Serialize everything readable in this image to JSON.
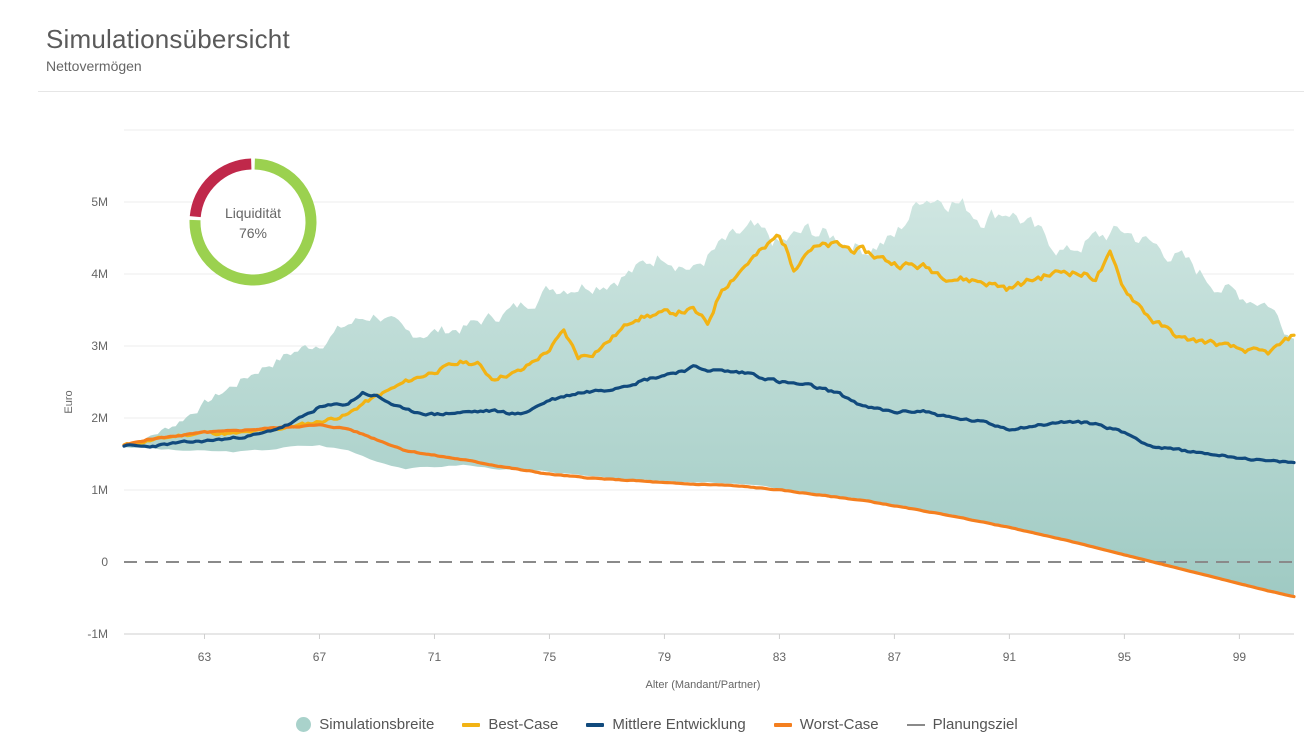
{
  "header": {
    "title": "Simulationsübersicht",
    "subtitle": "Nettovermögen"
  },
  "donut": {
    "label": "Liquidität",
    "value_text": "76%",
    "value": 0.76,
    "colors": {
      "good": "#9bd14f",
      "bad": "#c0284a"
    }
  },
  "chart_data": {
    "type": "line",
    "xlabel": "Alter (Mandant/Partner)",
    "ylabel": "Euro",
    "xlim": [
      60.2,
      100.9
    ],
    "ylim": [
      -1000000,
      6000000
    ],
    "x_ticks": [
      63,
      67,
      71,
      75,
      79,
      83,
      87,
      91,
      95,
      99
    ],
    "y_ticks": [
      -1000000,
      0,
      1000000,
      2000000,
      3000000,
      4000000,
      5000000
    ],
    "y_tick_labels": [
      "-1M",
      "0",
      "1M",
      "2M",
      "3M",
      "4M",
      "5M"
    ],
    "grid": true,
    "legend_position": "bottom",
    "band": {
      "name": "Simulationsbreite",
      "color": "#a9d2cb",
      "x": [
        60.2,
        61,
        62,
        63,
        64,
        65,
        66,
        67,
        68,
        69,
        70,
        71,
        72,
        73,
        74,
        75,
        76,
        77,
        78,
        79,
        80,
        81,
        82,
        83,
        84,
        85,
        86,
        87,
        88,
        89,
        90,
        91,
        92,
        93,
        94,
        95,
        96,
        97,
        98,
        99,
        100,
        100.9
      ],
      "upper": [
        1.6,
        1.72,
        1.92,
        2.2,
        2.45,
        2.7,
        2.9,
        3.05,
        3.3,
        3.45,
        3.15,
        3.2,
        3.25,
        3.4,
        3.55,
        3.8,
        3.85,
        3.9,
        4.05,
        4.3,
        4.05,
        4.4,
        4.6,
        4.4,
        4.6,
        4.5,
        4.35,
        4.5,
        5.1,
        5.05,
        4.8,
        4.9,
        4.55,
        4.3,
        4.5,
        4.6,
        4.4,
        4.2,
        3.9,
        3.7,
        3.6,
        3.1
      ],
      "lower": [
        1.6,
        1.58,
        1.55,
        1.54,
        1.53,
        1.55,
        1.6,
        1.62,
        1.55,
        1.4,
        1.3,
        1.32,
        1.35,
        1.3,
        1.27,
        1.25,
        1.2,
        1.18,
        1.15,
        1.12,
        1.1,
        1.1,
        1.07,
        1.02,
        0.97,
        0.91,
        0.86,
        0.79,
        0.72,
        0.65,
        0.57,
        0.48,
        0.39,
        0.3,
        0.2,
        0.1,
        0.0,
        -0.1,
        -0.2,
        -0.3,
        -0.4,
        -0.48
      ]
    },
    "series": [
      {
        "name": "Best-Case",
        "color": "#f2b314",
        "x": [
          60.2,
          61,
          62,
          63,
          64,
          65,
          66,
          67,
          68,
          68.5,
          69,
          70,
          71,
          72,
          72.5,
          73,
          74,
          75,
          75.5,
          76,
          76.5,
          77,
          78,
          79,
          80,
          80.5,
          81,
          82,
          82.5,
          83,
          83.5,
          84,
          85,
          86,
          87,
          88,
          89,
          90,
          91,
          92,
          93,
          94,
          94.5,
          95,
          96,
          97,
          98,
          99,
          100,
          100.9
        ],
        "y": [
          1.62,
          1.68,
          1.75,
          1.8,
          1.78,
          1.82,
          1.88,
          1.95,
          2.05,
          2.2,
          2.3,
          2.5,
          2.65,
          2.78,
          2.75,
          2.55,
          2.65,
          2.95,
          3.2,
          2.85,
          2.9,
          3.05,
          3.4,
          3.45,
          3.5,
          3.3,
          3.8,
          4.2,
          4.35,
          4.55,
          4.1,
          4.35,
          4.4,
          4.3,
          4.15,
          4.1,
          3.95,
          3.9,
          3.8,
          3.95,
          4.05,
          3.95,
          4.25,
          3.8,
          3.35,
          3.1,
          3.05,
          2.95,
          2.9,
          3.15
        ]
      },
      {
        "name": "Mittlere Entwicklung",
        "color": "#114a7d",
        "x": [
          60.2,
          61,
          62,
          63,
          64,
          65,
          66,
          67,
          68,
          68.5,
          69,
          70,
          71,
          72,
          73,
          74,
          75,
          76,
          77,
          78,
          79,
          80,
          81,
          82,
          83,
          84,
          85,
          86,
          87,
          88,
          89,
          90,
          91,
          92,
          93,
          94,
          95,
          96,
          97,
          98,
          99,
          100,
          100.9
        ],
        "y": [
          1.62,
          1.6,
          1.65,
          1.68,
          1.72,
          1.78,
          1.92,
          2.15,
          2.2,
          2.35,
          2.3,
          2.1,
          2.05,
          2.08,
          2.1,
          2.05,
          2.25,
          2.35,
          2.4,
          2.5,
          2.6,
          2.7,
          2.65,
          2.62,
          2.5,
          2.45,
          2.35,
          2.15,
          2.08,
          2.1,
          2.0,
          1.95,
          1.85,
          1.9,
          1.95,
          1.92,
          1.8,
          1.6,
          1.55,
          1.5,
          1.45,
          1.4,
          1.38
        ]
      },
      {
        "name": "Worst-Case",
        "color": "#f47f1f",
        "x": [
          60.2,
          61,
          62,
          63,
          64,
          65,
          66,
          67,
          68,
          69,
          70,
          71,
          72,
          73,
          74,
          75,
          76,
          77,
          78,
          79,
          80,
          81,
          82,
          83,
          84,
          85,
          86,
          87,
          88,
          89,
          90,
          91,
          92,
          93,
          94,
          95,
          96,
          97,
          98,
          99,
          100,
          100.9
        ],
        "y": [
          1.62,
          1.7,
          1.75,
          1.8,
          1.82,
          1.85,
          1.88,
          1.9,
          1.85,
          1.7,
          1.55,
          1.48,
          1.42,
          1.35,
          1.28,
          1.22,
          1.18,
          1.15,
          1.13,
          1.1,
          1.08,
          1.07,
          1.04,
          1.0,
          0.95,
          0.9,
          0.85,
          0.78,
          0.71,
          0.64,
          0.56,
          0.48,
          0.39,
          0.3,
          0.2,
          0.1,
          0.0,
          -0.1,
          -0.2,
          -0.3,
          -0.4,
          -0.48
        ]
      },
      {
        "name": "Planungsziel",
        "color": "#8a8a8a",
        "dashed": true,
        "x": [
          60.2,
          100.9
        ],
        "y": [
          0,
          0
        ]
      }
    ],
    "y_unit_multiplier": 1000000
  },
  "legend": [
    {
      "label": "Simulationsbreite",
      "kind": "dot",
      "color": "#a9d2cb"
    },
    {
      "label": "Best-Case",
      "kind": "line",
      "color": "#f2b314"
    },
    {
      "label": "Mittlere Entwicklung",
      "kind": "line",
      "color": "#114a7d"
    },
    {
      "label": "Worst-Case",
      "kind": "line",
      "color": "#f47f1f"
    },
    {
      "label": "Planungsziel",
      "kind": "thin",
      "color": "#8a8a8a"
    }
  ]
}
